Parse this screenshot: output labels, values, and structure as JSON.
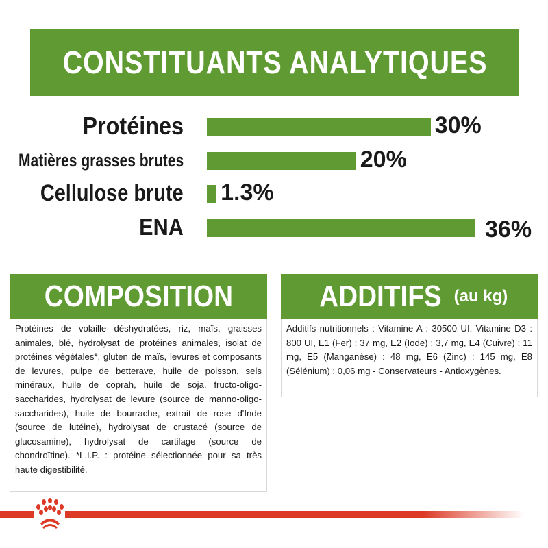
{
  "title": "CONSTITUANTS ANALYTIQUES",
  "chart_data": {
    "type": "bar",
    "orientation": "horizontal",
    "categories": [
      "Protéines",
      "Matières grasses brutes",
      "Cellulose brute",
      "ENA"
    ],
    "values": [
      30,
      20,
      1.3,
      36
    ],
    "value_labels": [
      "30%",
      "20%",
      "1.3%",
      "36%"
    ],
    "xlim": [
      0,
      36
    ],
    "color": "#5f9b32"
  },
  "composition": {
    "title": "COMPOSITION",
    "text": "Protéines de volaille déshydratées, riz, maïs, graisses animales, blé, hydrolysat de protéines animales, isolat de protéines végétales*, gluten de maïs, levures et composants de levures, pulpe de betterave, huile de poisson, sels minéraux, huile de coprah, huile de soja, fructo-oligo-saccharides, hydrolysat de levure (source de manno-oligo-saccharides), huile de bourrache, extrait de rose d'Inde (source de lutéine), hydrolysat de crustacé (source de glucosamine), hydrolysat de cartilage (source de chondroïtine). *L.I.P. : protéine sélectionnée pour sa très haute digestibilité."
  },
  "additifs": {
    "title": "ADDITIFS",
    "subtitle": "(au kg)",
    "text": "Additifs nutritionnels : Vitamine A : 30500 UI, Vitamine D3 : 800 UI, E1 (Fer) : 37 mg, E2 (Iode) : 3,7 mg, E4 (Cuivre) : 11 mg, E5 (Manganèse) : 48 mg, E6 (Zinc) : 145 mg, E8 (Sélénium) : 0,06 mg - Conservateurs - Antioxygènes."
  },
  "colors": {
    "green": "#5f9b32",
    "brand_red": "#dc3a26"
  },
  "logo": "crown-logo"
}
